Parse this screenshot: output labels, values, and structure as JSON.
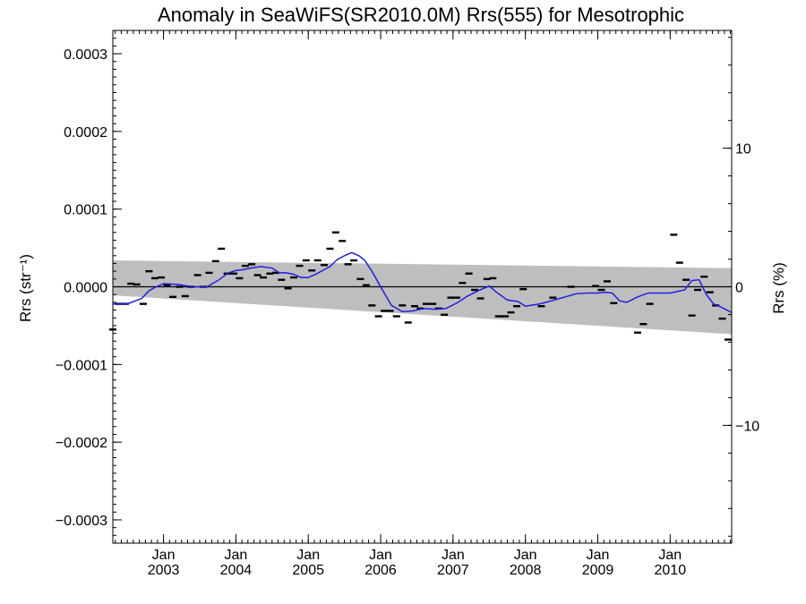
{
  "chart_data": {
    "type": "line",
    "title": "Anomaly in SeaWiFS(SR2010.0M) Rrs(555) for Mesotrophic",
    "ylabel_left": "Rrs (str⁻¹)",
    "ylabel_right": "Rrs (%)",
    "x_range": [
      2002.3,
      2010.85
    ],
    "y_range": [
      -0.00033,
      0.00033
    ],
    "y_range_right_percent": [
      -18.5,
      18.5
    ],
    "y_ticks_left": [
      {
        "value": 0.0003,
        "label": "0.0003"
      },
      {
        "value": 0.0002,
        "label": "0.0002"
      },
      {
        "value": 0.0001,
        "label": "0.0001"
      },
      {
        "value": 0.0,
        "label": "0.0000"
      },
      {
        "value": -0.0001,
        "label": "−0.0001"
      },
      {
        "value": -0.0002,
        "label": "−0.0002"
      },
      {
        "value": -0.0003,
        "label": "−0.0003"
      }
    ],
    "y_ticks_right": [
      {
        "value": 10,
        "label": "10"
      },
      {
        "value": 0,
        "label": "0"
      },
      {
        "value": -10,
        "label": "−10"
      }
    ],
    "x_ticks": [
      {
        "value": 2003.0,
        "month": "Jan",
        "year": "2003"
      },
      {
        "value": 2004.0,
        "month": "Jan",
        "year": "2004"
      },
      {
        "value": 2005.0,
        "month": "Jan",
        "year": "2005"
      },
      {
        "value": 2006.0,
        "month": "Jan",
        "year": "2006"
      },
      {
        "value": 2007.0,
        "month": "Jan",
        "year": "2007"
      },
      {
        "value": 2008.0,
        "month": "Jan",
        "year": "2008"
      },
      {
        "value": 2009.0,
        "month": "Jan",
        "year": "2009"
      },
      {
        "value": 2010.0,
        "month": "Jan",
        "year": "2010"
      }
    ],
    "uncertainty_band": {
      "x": [
        2002.3,
        2010.85
      ],
      "upper": [
        3.4e-05,
        2.4e-05
      ],
      "lower": [
        -1.1e-05,
        -6.1e-05
      ],
      "color": "#bebebe"
    },
    "zero_line": 0,
    "monthly_points": {
      "color": "#000000",
      "x": [
        2002.3,
        2002.38,
        2002.47,
        2002.55,
        2002.63,
        2002.72,
        2002.8,
        2002.88,
        2002.97,
        2003.05,
        2003.13,
        2003.22,
        2003.3,
        2003.38,
        2003.47,
        2003.55,
        2003.63,
        2003.72,
        2003.8,
        2003.88,
        2003.97,
        2004.05,
        2004.13,
        2004.22,
        2004.3,
        2004.38,
        2004.47,
        2004.55,
        2004.63,
        2004.72,
        2004.8,
        2004.88,
        2004.97,
        2005.05,
        2005.13,
        2005.22,
        2005.3,
        2005.38,
        2005.47,
        2005.55,
        2005.63,
        2005.72,
        2005.8,
        2005.88,
        2005.97,
        2006.05,
        2006.13,
        2006.22,
        2006.3,
        2006.38,
        2006.47,
        2006.55,
        2006.63,
        2006.72,
        2006.8,
        2006.88,
        2006.97,
        2007.05,
        2007.13,
        2007.22,
        2007.3,
        2007.38,
        2007.47,
        2007.55,
        2007.63,
        2007.72,
        2007.8,
        2007.88,
        2007.97,
        2008.22,
        2008.38,
        2008.63,
        2008.97,
        2009.05,
        2009.13,
        2009.22,
        2009.55,
        2009.63,
        2009.72,
        2010.05,
        2010.13,
        2010.22,
        2010.3,
        2010.38,
        2010.47,
        2010.55,
        2010.63,
        2010.72,
        2010.8
      ],
      "values": [
        -5.5e-05,
        -2.2e-05,
        -2.2e-05,
        4e-06,
        3e-06,
        -2.2e-05,
        2e-05,
        1.1e-05,
        1.2e-05,
        2e-06,
        -1.3e-05,
        0.0,
        -1.2e-05,
        0.0,
        1.5e-05,
        0.0,
        1.8e-05,
        3.3e-05,
        4.9e-05,
        1.7e-05,
        1.7e-05,
        1.1e-05,
        2.7e-05,
        2.9e-05,
        1.5e-05,
        1.2e-05,
        1.7e-05,
        1.8e-05,
        9e-06,
        -2e-06,
        1.2e-05,
        2.7e-05,
        3.4e-05,
        2.1e-05,
        3.4e-05,
        2.8e-05,
        4.9e-05,
        7e-05,
        5.9e-05,
        2.9e-05,
        3.4e-05,
        1e-05,
        2e-06,
        -2.4e-05,
        -3.8e-05,
        -3.1e-05,
        -3.1e-05,
        -3.8e-05,
        -2.4e-05,
        -4.6e-05,
        -2.5e-05,
        -2.8e-05,
        -2.2e-05,
        -2.2e-05,
        -2.8e-05,
        -3.6e-05,
        -1.4e-05,
        -1.4e-05,
        5e-06,
        1.7e-05,
        -4e-06,
        -1.5e-05,
        1e-05,
        1.1e-05,
        -3.8e-05,
        -3.8e-05,
        -3.3e-05,
        -2.5e-05,
        -3e-06,
        -2.5e-05,
        -1.4e-05,
        0.0,
        1e-06,
        -4e-06,
        7e-06,
        -2.1e-05,
        -5.9e-05,
        -4.8e-05,
        -2.2e-05,
        6.7e-05,
        3.1e-05,
        9e-06,
        -3.7e-05,
        -4e-06,
        1.3e-05,
        -7e-06,
        -2.4e-05,
        -4.1e-05,
        -6.8e-05
      ]
    },
    "smoothed_series": {
      "color": "#1f1fe6",
      "x": [
        2002.3,
        2002.5,
        2002.7,
        2002.8,
        2002.9,
        2003.0,
        2003.2,
        2003.4,
        2003.6,
        2003.75,
        2003.9,
        2004.0,
        2004.1,
        2004.2,
        2004.35,
        2004.5,
        2004.6,
        2004.7,
        2004.8,
        2004.9,
        2005.0,
        2005.1,
        2005.2,
        2005.3,
        2005.4,
        2005.5,
        2005.6,
        2005.7,
        2005.78,
        2005.88,
        2006.0,
        2006.15,
        2006.3,
        2006.45,
        2006.6,
        2006.75,
        2006.9,
        2007.05,
        2007.2,
        2007.35,
        2007.5,
        2007.6,
        2007.75,
        2007.9,
        2008.0,
        2008.2,
        2008.4,
        2008.55,
        2008.7,
        2008.85,
        2009.0,
        2009.1,
        2009.2,
        2009.3,
        2009.4,
        2009.55,
        2009.7,
        2009.85,
        2010.0,
        2010.1,
        2010.2,
        2010.3,
        2010.4,
        2010.5,
        2010.6,
        2010.7,
        2010.85
      ],
      "values": [
        -2.2e-05,
        -2.2e-05,
        -1.5e-05,
        -5e-06,
        0.0,
        4e-06,
        3e-06,
        0.0,
        0.0,
        8e-06,
        1.8e-05,
        2.1e-05,
        2.2e-05,
        2.4e-05,
        2.6e-05,
        2.4e-05,
        1.8e-05,
        1.8e-05,
        1.6e-05,
        1.2e-05,
        1.2e-05,
        1.6e-05,
        2.1e-05,
        2.6e-05,
        3.5e-05,
        4e-05,
        4.4e-05,
        4e-05,
        3.4e-05,
        2e-05,
        0.0,
        -2.4e-05,
        -3.2e-05,
        -3.1e-05,
        -2.8e-05,
        -2.9e-05,
        -2.8e-05,
        -2.1e-05,
        -1.2e-05,
        -5e-06,
        1e-06,
        -7e-06,
        -1.7e-05,
        -1.9e-05,
        -2.5e-05,
        -2.2e-05,
        -1.7e-05,
        -1.3e-05,
        -9e-06,
        -8e-06,
        -8e-06,
        -7e-06,
        -8e-06,
        -1.8e-05,
        -2e-05,
        -1.3e-05,
        -8e-06,
        -8e-06,
        -8e-06,
        -6e-06,
        -4e-06,
        8e-06,
        9e-06,
        -1e-05,
        -2.2e-05,
        -2.6e-05,
        -3.3e-05
      ]
    }
  }
}
